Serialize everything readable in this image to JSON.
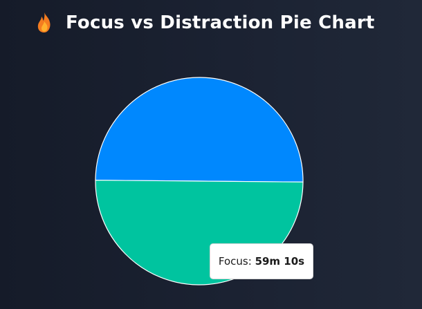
{
  "header": {
    "title": "Focus vs Distraction Pie Chart",
    "icon": "fire-icon"
  },
  "chart_data": {
    "type": "pie",
    "title": "Focus vs Distraction Pie Chart",
    "slices": [
      {
        "value": 0.5,
        "color": "#0088fe"
      },
      {
        "label": "Focus",
        "value": 0.5,
        "color": "#00c49f"
      }
    ],
    "stroke_color": "#ffffff"
  },
  "tooltip": {
    "label": "Focus",
    "separator": ": ",
    "value": "59m 10s"
  }
}
